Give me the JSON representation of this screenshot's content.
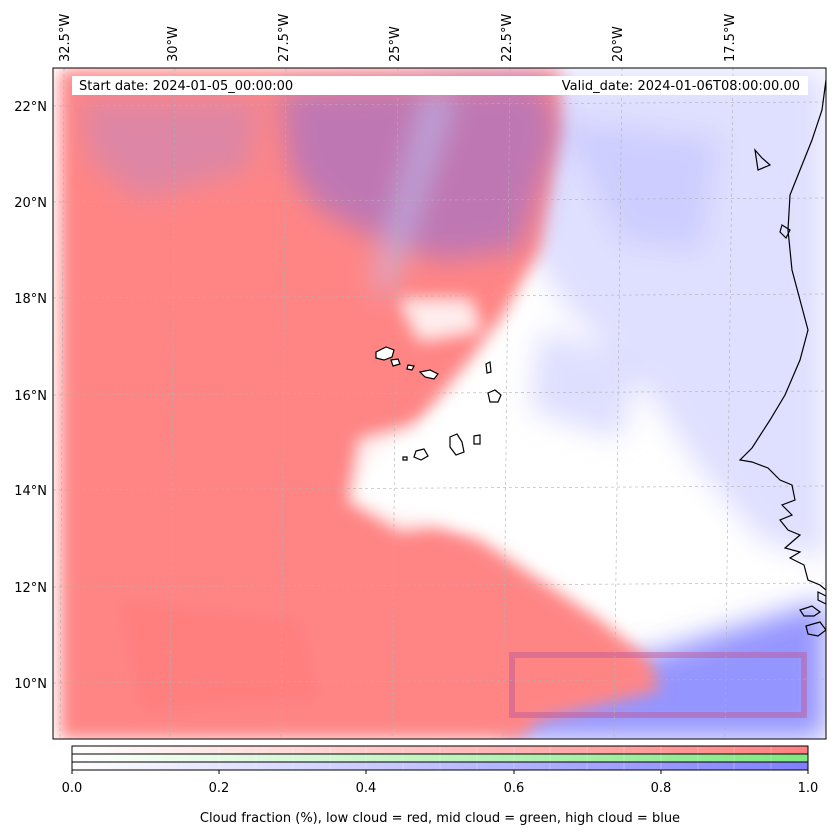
{
  "header": {
    "start_date": "Start date: 2024-01-05_00:00:00",
    "valid_date": "Valid_date: 2024-01-06T08:00:00.00"
  },
  "longitude_labels": [
    "32.5°W",
    "30°W",
    "27.5°W",
    "25°W",
    "22.5°W",
    "20°W",
    "17.5°W"
  ],
  "latitude_labels": [
    "22°N",
    "20°N",
    "18°N",
    "16°N",
    "14°N",
    "12°N",
    "10°N"
  ],
  "colorbar": {
    "ticks": [
      "0.0",
      "0.2",
      "0.4",
      "0.6",
      "0.8",
      "1.0"
    ],
    "label": "Cloud fraction (%), low cloud = red, mid cloud = green, high cloud = blue",
    "colors": {
      "low": "#ff7f7f",
      "mid": "#80e880",
      "high": "#7f7fff"
    }
  }
}
